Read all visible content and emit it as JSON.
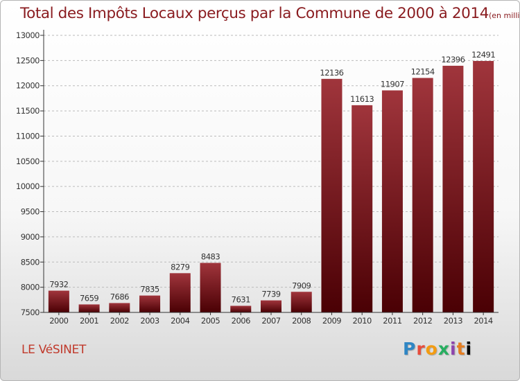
{
  "chart_title": "Total des Impôts Locaux perçus par la Commune de 2000 à 2014",
  "chart_subtitle": "(en milliers d'€)",
  "commune_label": "LE VéSINET",
  "logo_text": "Proxiti",
  "colors": {
    "title": "#8a1c20",
    "bar_top": "#a0353c",
    "bar_bottom": "#4a0004",
    "axis": "#333333",
    "grid": "#bbbbbb",
    "commune": "#c0392b"
  },
  "chart_data": {
    "type": "bar",
    "title": "Total des Impôts Locaux perçus par la Commune de 2000 à 2014",
    "subtitle": "(en milliers d'€)",
    "xlabel": "",
    "ylabel": "",
    "categories": [
      "2000",
      "2001",
      "2002",
      "2003",
      "2004",
      "2005",
      "2006",
      "2007",
      "2008",
      "2009",
      "2010",
      "2011",
      "2012",
      "2013",
      "2014"
    ],
    "values": [
      7932,
      7659,
      7686,
      7835,
      8279,
      8483,
      7631,
      7739,
      7909,
      12136,
      11613,
      11907,
      12154,
      12396,
      12491
    ],
    "ylim": [
      7500,
      13000
    ],
    "yticks": [
      7500,
      8000,
      8500,
      9000,
      9500,
      10000,
      10500,
      11000,
      11500,
      12000,
      12500,
      13000
    ],
    "grid": "horizontal dashed",
    "data_labels": true
  }
}
